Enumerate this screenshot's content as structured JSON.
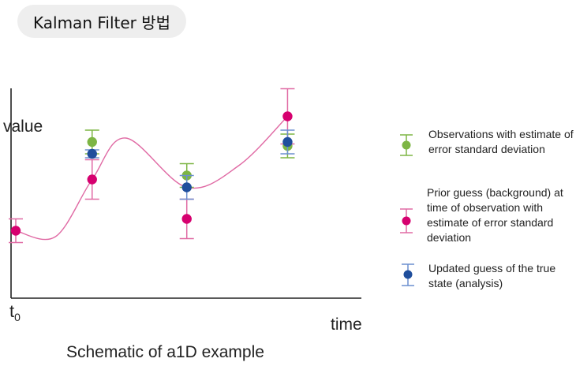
{
  "header": {
    "title": "Kalman Filter 방법"
  },
  "figure": {
    "y_axis_label": "value",
    "x_axis_label": "time",
    "origin_label": "t",
    "origin_subscript": "0",
    "caption": "Schematic of a1D example"
  },
  "legend": {
    "observation": "Observations with estimate of error standard deviation",
    "prior": "Prior guess (background) at time of observation with estimate of error standard deviation",
    "updated": "Updated guess of the true state (analysis)"
  },
  "colors": {
    "observation": "#7db544",
    "prior": "#d6006f",
    "updated": "#1f4e9c",
    "prior_curve": "#e06aa4",
    "axis": "#222222"
  },
  "chart_data": {
    "type": "scatter",
    "title": "Schematic of a1D example",
    "xlabel": "time",
    "ylabel": "value",
    "x_ticks": [
      "t0"
    ],
    "xlim": [
      0,
      10
    ],
    "ylim": [
      0,
      10
    ],
    "series": [
      {
        "name": "Observations with estimate of error standard deviation",
        "points": [
          {
            "x": 2.5,
            "y": 7.2,
            "err": 0.6
          },
          {
            "x": 5.6,
            "y": 5.5,
            "err": 0.6
          },
          {
            "x": 8.9,
            "y": 7.0,
            "err": 0.6
          }
        ]
      },
      {
        "name": "Prior guess (background) at time of observation with estimate of error standard deviation",
        "points": [
          {
            "x": 0.0,
            "y": 2.7,
            "err": 0.6
          },
          {
            "x": 2.5,
            "y": 5.3,
            "err": 1.0
          },
          {
            "x": 5.6,
            "y": 3.3,
            "err": 1.0
          },
          {
            "x": 8.9,
            "y": 8.5,
            "err": 1.4
          }
        ]
      },
      {
        "name": "Updated guess of the true state (analysis)",
        "points": [
          {
            "x": 2.5,
            "y": 6.6,
            "err": 0.2
          },
          {
            "x": 5.6,
            "y": 4.9,
            "err": 0.6
          },
          {
            "x": 8.9,
            "y": 7.2,
            "err": 0.6
          }
        ]
      }
    ],
    "curve": [
      {
        "x": 0.0,
        "y": 2.7
      },
      {
        "x": 1.3,
        "y": 2.4
      },
      {
        "x": 2.5,
        "y": 5.3
      },
      {
        "x": 3.6,
        "y": 7.4
      },
      {
        "x": 5.6,
        "y": 4.9
      },
      {
        "x": 7.3,
        "y": 6.0
      },
      {
        "x": 8.9,
        "y": 8.5
      }
    ]
  }
}
